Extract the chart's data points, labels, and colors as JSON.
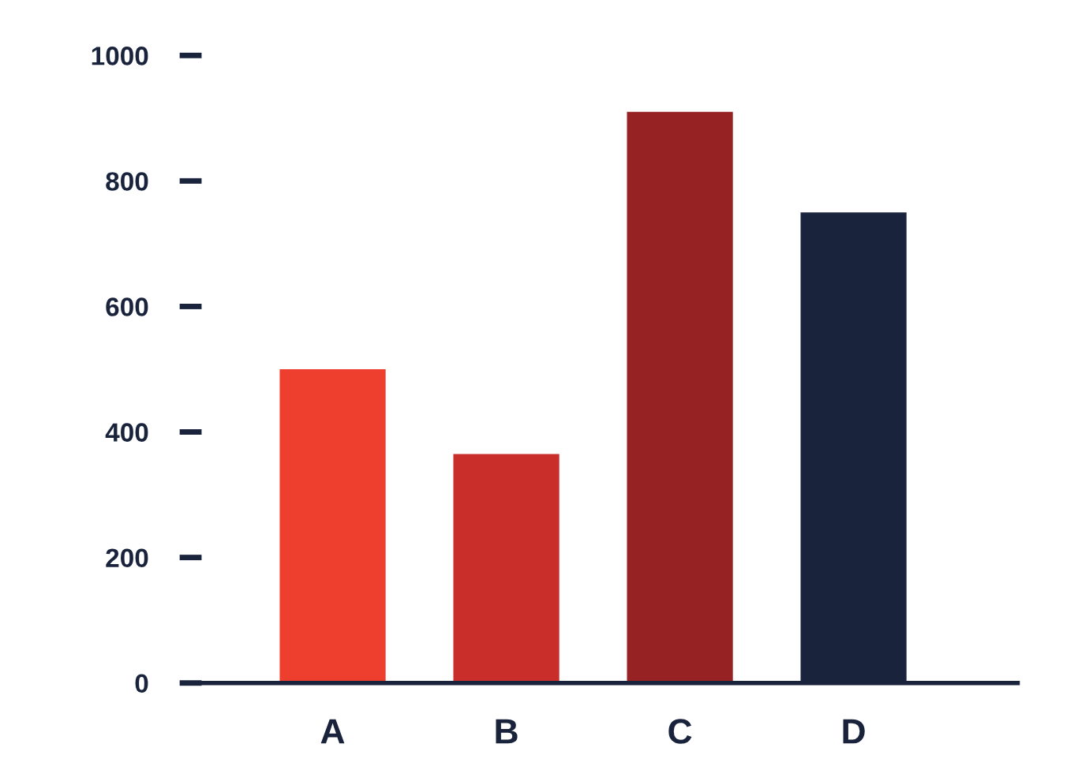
{
  "chart_data": {
    "type": "bar",
    "categories": [
      "A",
      "B",
      "C",
      "D"
    ],
    "values": [
      500,
      365,
      910,
      750
    ],
    "colors": [
      "#ee3e2d",
      "#c92e2b",
      "#962224",
      "#19233b"
    ],
    "ylim": [
      0,
      1000
    ],
    "yticks": [
      0,
      200,
      400,
      600,
      800,
      1000
    ],
    "grid": false,
    "legend": false
  }
}
